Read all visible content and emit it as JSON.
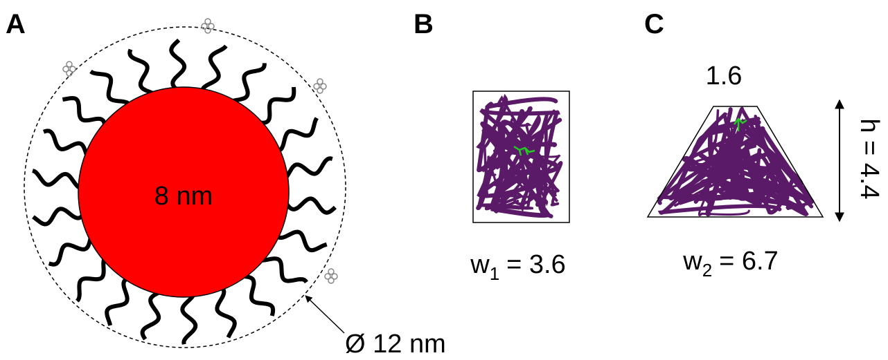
{
  "panels": [
    {
      "label": "A",
      "core": "8 nm",
      "diameter": "Ø 12 nm"
    },
    {
      "label": "B",
      "width": {
        "symbol": "w",
        "subscript": "1",
        "value": "= 3.6"
      }
    },
    {
      "label": "C",
      "top": "1.6",
      "width": {
        "symbol": "w",
        "subscript": "2",
        "value": "= 6.7"
      },
      "height": "h = 4.4"
    }
  ]
}
